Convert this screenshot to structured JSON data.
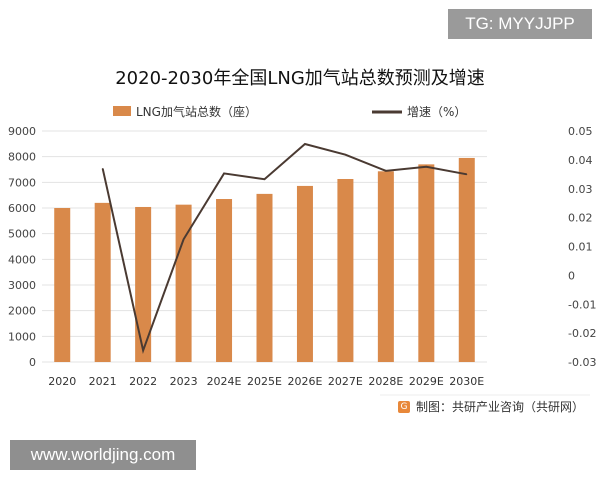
{
  "watermark_top": "TG: MYYJJPP",
  "watermark_bottom": "www.worldjing.com",
  "source": "制图：共研产业咨询（共研网）",
  "chart_data": {
    "type": "bar+line",
    "title": "2020-2030年全国LNG加气站总数预测及增速",
    "categories": [
      "2020",
      "2021",
      "2022",
      "2023",
      "2024E",
      "2025E",
      "2026E",
      "2027E",
      "2028E",
      "2029E",
      "2030E"
    ],
    "series": [
      {
        "name": "LNG加气站总数（座）",
        "type": "bar",
        "axis": "left",
        "color": "#d9894a",
        "values": [
          6000,
          6200,
          6040,
          6130,
          6350,
          6550,
          6860,
          7130,
          7430,
          7700,
          7950
        ]
      },
      {
        "name": "增速（%）",
        "type": "line",
        "axis": "right",
        "color": "#4a3a32",
        "values": [
          null,
          0.037,
          -0.026,
          0.0125,
          0.0353,
          0.0333,
          0.0455,
          0.0418,
          0.0362,
          0.0376,
          0.035
        ]
      }
    ],
    "ylim_left": [
      0,
      9000
    ],
    "yticks_left": [
      "0",
      "1000",
      "2000",
      "3000",
      "4000",
      "5000",
      "6000",
      "7000",
      "8000",
      "9000"
    ],
    "ylim_right": [
      -0.03,
      0.05
    ],
    "yticks_right": [
      "-0.03",
      "-0.02",
      "-0.01",
      "0",
      "0.01",
      "0.02",
      "0.03",
      "0.04",
      "0.05"
    ],
    "grid": true,
    "legend": "top"
  }
}
